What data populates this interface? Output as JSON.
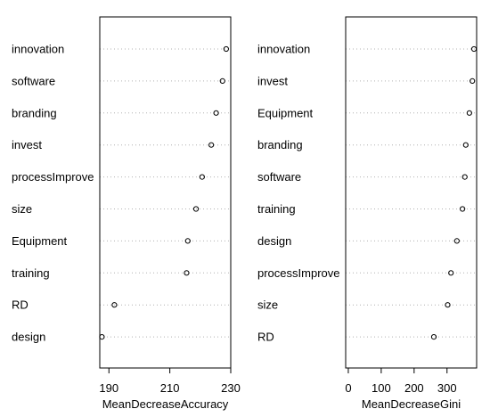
{
  "chart_data": [
    {
      "type": "scatter",
      "variant": "dotchart",
      "xlabel": "MeanDecreaseAccuracy",
      "xlim": [
        187,
        230
      ],
      "xticks": [
        190,
        210,
        230
      ],
      "grid": "dotted-horizontal",
      "points": [
        {
          "label": "innovation",
          "value": 228.5
        },
        {
          "label": "software",
          "value": 227.3
        },
        {
          "label": "branding",
          "value": 225.2
        },
        {
          "label": "invest",
          "value": 223.6
        },
        {
          "label": "processImprove",
          "value": 220.6
        },
        {
          "label": "size",
          "value": 218.6
        },
        {
          "label": "Equipment",
          "value": 215.9
        },
        {
          "label": "training",
          "value": 215.5
        },
        {
          "label": "RD",
          "value": 191.8
        },
        {
          "label": "design",
          "value": 187.7
        }
      ]
    },
    {
      "type": "scatter",
      "variant": "dotchart",
      "xlabel": "MeanDecreaseGini",
      "xlim": [
        -8,
        390
      ],
      "xticks": [
        0,
        100,
        200,
        300
      ],
      "grid": "dotted-horizontal",
      "points": [
        {
          "label": "innovation",
          "value": 382
        },
        {
          "label": "invest",
          "value": 377
        },
        {
          "label": "Equipment",
          "value": 368
        },
        {
          "label": "branding",
          "value": 357
        },
        {
          "label": "software",
          "value": 354
        },
        {
          "label": "training",
          "value": 347
        },
        {
          "label": "design",
          "value": 330
        },
        {
          "label": "processImprove",
          "value": 312
        },
        {
          "label": "size",
          "value": 302
        },
        {
          "label": "RD",
          "value": 260
        }
      ]
    }
  ]
}
